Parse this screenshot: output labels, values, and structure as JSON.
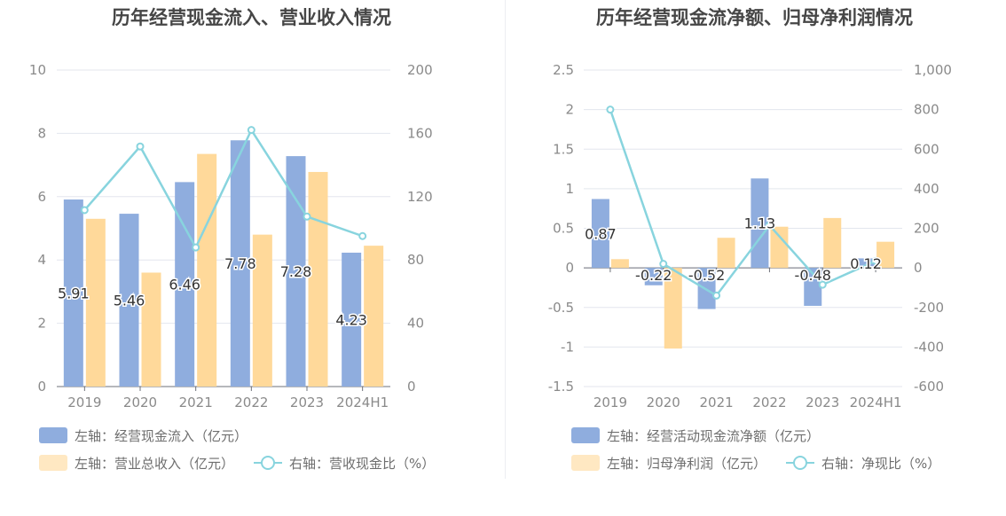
{
  "colors": {
    "bar_primary": "#8fadde",
    "bar_secondary": "#ffd99a",
    "line": "#88d4de",
    "axis_text": "#8a8a8a",
    "grid": "#e3e6ee"
  },
  "chart_data": [
    {
      "type": "bar",
      "title": "历年经营现金流入、营业收入情况",
      "categories": [
        "2019",
        "2020",
        "2021",
        "2022",
        "2023",
        "2024H1"
      ],
      "y_left": {
        "min": 0,
        "max": 10,
        "ticks": [
          "0",
          "2",
          "4",
          "6",
          "8",
          "10"
        ]
      },
      "y_right": {
        "min": 0,
        "max": 200,
        "ticks": [
          "0",
          "40",
          "80",
          "120",
          "160",
          "200"
        ]
      },
      "series": [
        {
          "name": "左轴：经营现金流入（亿元）",
          "type": "bar",
          "axis": "left",
          "color": "#8fadde",
          "values": [
            5.91,
            5.46,
            6.46,
            7.78,
            7.28,
            4.23
          ],
          "labels": [
            "5.91",
            "5.46",
            "6.46",
            "7.78",
            "7.28",
            "4.23"
          ]
        },
        {
          "name": "左轴：营业总收入（亿元）",
          "type": "bar",
          "axis": "left",
          "color": "#ffd99a",
          "values": [
            5.3,
            3.6,
            7.35,
            4.8,
            6.78,
            4.45
          ]
        },
        {
          "name": "右轴：营收现金比（%）",
          "type": "line",
          "axis": "right",
          "color": "#88d4de",
          "values": [
            111.5,
            151.7,
            87.9,
            162.1,
            107.4,
            95.1
          ]
        }
      ],
      "legend_rows": [
        [
          "左轴：经营现金流入（亿元）"
        ],
        [
          "左轴：营业总收入（亿元）",
          "右轴：营收现金比（%）"
        ]
      ]
    },
    {
      "type": "bar",
      "title": "历年经营现金流净额、归母净利润情况",
      "categories": [
        "2019",
        "2020",
        "2021",
        "2022",
        "2023",
        "2024H1"
      ],
      "y_left": {
        "min": -1.5,
        "max": 2.5,
        "ticks": [
          "-1.5",
          "-1",
          "-0.5",
          "0",
          "0.5",
          "1",
          "1.5",
          "2",
          "2.5"
        ]
      },
      "y_right": {
        "min": -600,
        "max": 1000,
        "ticks": [
          "-600",
          "-400",
          "-200",
          "0",
          "200",
          "400",
          "600",
          "800",
          "1,000"
        ]
      },
      "series": [
        {
          "name": "左轴：经营活动现金流净额（亿元）",
          "type": "bar",
          "axis": "left",
          "color": "#8fadde",
          "values": [
            0.87,
            -0.22,
            -0.52,
            1.13,
            -0.48,
            0.12
          ],
          "labels": [
            "0.87",
            "-0.22",
            "-0.52",
            "1.13",
            "-0.48",
            "0.12"
          ]
        },
        {
          "name": "左轴：归母净利润（亿元）",
          "type": "bar",
          "axis": "left",
          "color": "#ffd99a",
          "values": [
            0.11,
            -1.02,
            0.38,
            0.52,
            0.63,
            0.33
          ]
        },
        {
          "name": "右轴：净现比（%）",
          "type": "line",
          "axis": "right",
          "color": "#88d4de",
          "values": [
            800,
            20,
            -140,
            215,
            -85,
            35
          ]
        }
      ],
      "legend_rows": [
        [
          "左轴：经营活动现金流净额（亿元）"
        ],
        [
          "左轴：归母净利润（亿元）",
          "右轴：净现比（%）"
        ]
      ]
    }
  ]
}
